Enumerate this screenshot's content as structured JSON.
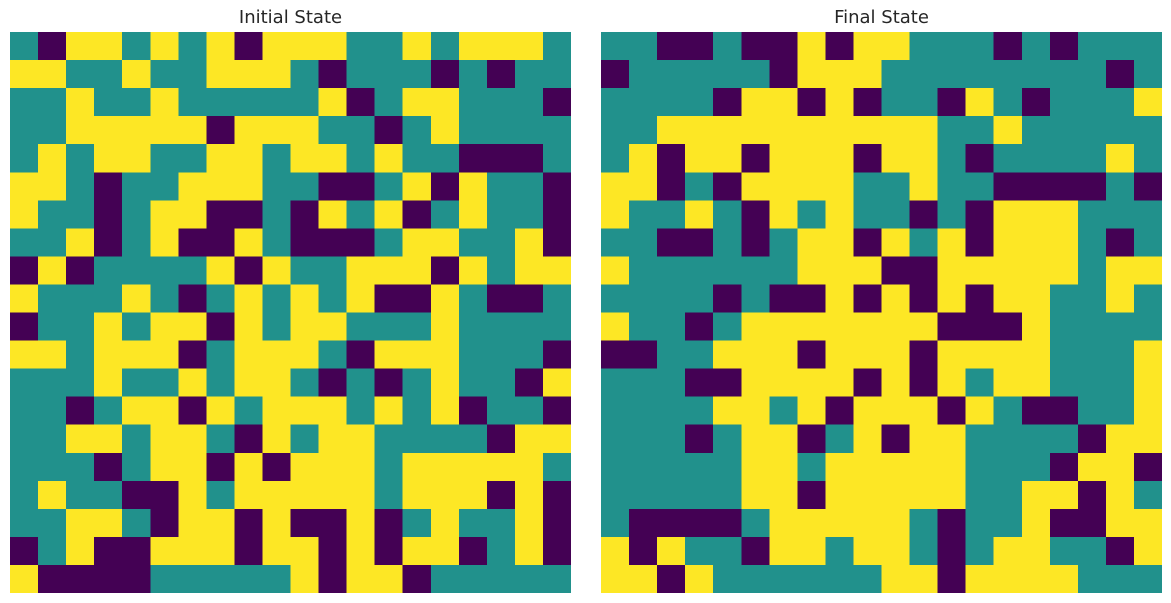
{
  "chart_data": [
    {
      "type": "heatmap",
      "title": "Initial State",
      "colors": {
        "0": "#440154",
        "1": "#21918c",
        "2": "#fde725"
      },
      "grid": [
        [
          1,
          0,
          2,
          2,
          1,
          2,
          1,
          2,
          0,
          2,
          2,
          2,
          1,
          1,
          2,
          1,
          2,
          2,
          2,
          1
        ],
        [
          2,
          2,
          1,
          1,
          2,
          1,
          1,
          2,
          2,
          2,
          1,
          0,
          1,
          1,
          1,
          0,
          1,
          0,
          1,
          1
        ],
        [
          1,
          1,
          2,
          1,
          1,
          2,
          1,
          1,
          1,
          1,
          1,
          2,
          0,
          1,
          2,
          2,
          1,
          1,
          1,
          0
        ],
        [
          1,
          1,
          2,
          2,
          2,
          2,
          2,
          0,
          2,
          2,
          2,
          1,
          1,
          0,
          1,
          2,
          1,
          1,
          1,
          1
        ],
        [
          1,
          2,
          1,
          2,
          2,
          1,
          1,
          2,
          2,
          1,
          2,
          2,
          1,
          2,
          1,
          1,
          0,
          0,
          0,
          1
        ],
        [
          2,
          2,
          1,
          0,
          1,
          1,
          2,
          2,
          2,
          1,
          1,
          0,
          0,
          1,
          2,
          0,
          2,
          1,
          1,
          0
        ],
        [
          2,
          1,
          1,
          0,
          1,
          2,
          2,
          0,
          0,
          1,
          0,
          2,
          1,
          2,
          0,
          1,
          2,
          1,
          1,
          0
        ],
        [
          1,
          1,
          2,
          0,
          1,
          2,
          0,
          0,
          2,
          1,
          0,
          0,
          0,
          1,
          2,
          2,
          1,
          1,
          2,
          0
        ],
        [
          0,
          2,
          0,
          1,
          1,
          1,
          1,
          2,
          0,
          2,
          1,
          1,
          2,
          2,
          2,
          0,
          2,
          1,
          2,
          2
        ],
        [
          2,
          1,
          1,
          1,
          2,
          1,
          0,
          1,
          2,
          1,
          2,
          1,
          2,
          0,
          0,
          2,
          1,
          0,
          0,
          1
        ],
        [
          0,
          1,
          1,
          2,
          1,
          2,
          2,
          0,
          2,
          1,
          2,
          2,
          1,
          1,
          1,
          2,
          1,
          1,
          1,
          1
        ],
        [
          2,
          2,
          1,
          2,
          2,
          2,
          0,
          1,
          2,
          2,
          2,
          1,
          0,
          2,
          2,
          2,
          1,
          1,
          1,
          0
        ],
        [
          1,
          1,
          1,
          2,
          1,
          1,
          2,
          1,
          2,
          2,
          1,
          0,
          1,
          0,
          1,
          2,
          1,
          1,
          0,
          2
        ],
        [
          1,
          1,
          0,
          1,
          2,
          2,
          0,
          2,
          1,
          2,
          2,
          2,
          1,
          2,
          1,
          2,
          0,
          1,
          1,
          0
        ],
        [
          1,
          1,
          2,
          2,
          1,
          2,
          2,
          1,
          0,
          2,
          1,
          2,
          2,
          1,
          1,
          1,
          1,
          0,
          2,
          2
        ],
        [
          1,
          1,
          1,
          0,
          1,
          2,
          2,
          0,
          2,
          0,
          2,
          2,
          2,
          1,
          2,
          2,
          2,
          2,
          2,
          1
        ],
        [
          1,
          2,
          1,
          1,
          0,
          0,
          2,
          1,
          2,
          2,
          2,
          2,
          2,
          1,
          2,
          2,
          2,
          0,
          2,
          0
        ],
        [
          1,
          1,
          2,
          2,
          1,
          0,
          2,
          2,
          0,
          2,
          0,
          0,
          2,
          0,
          1,
          2,
          1,
          1,
          2,
          0
        ],
        [
          0,
          1,
          2,
          0,
          0,
          2,
          2,
          2,
          0,
          2,
          2,
          0,
          2,
          0,
          2,
          2,
          0,
          1,
          2,
          0
        ],
        [
          2,
          0,
          0,
          0,
          0,
          1,
          1,
          1,
          1,
          1,
          2,
          0,
          2,
          2,
          0,
          1,
          1,
          1,
          1,
          1
        ]
      ]
    },
    {
      "type": "heatmap",
      "title": "Final State",
      "colors": {
        "0": "#440154",
        "1": "#21918c",
        "2": "#fde725"
      },
      "grid": [
        [
          1,
          1,
          0,
          0,
          1,
          0,
          0,
          2,
          0,
          2,
          2,
          1,
          1,
          1,
          0,
          1,
          0,
          1,
          1,
          1
        ],
        [
          0,
          1,
          1,
          1,
          1,
          1,
          0,
          2,
          2,
          2,
          1,
          1,
          1,
          1,
          1,
          1,
          1,
          1,
          0,
          1
        ],
        [
          1,
          1,
          1,
          1,
          0,
          2,
          2,
          0,
          2,
          0,
          1,
          1,
          0,
          2,
          1,
          0,
          1,
          1,
          1,
          2
        ],
        [
          1,
          1,
          2,
          2,
          2,
          2,
          2,
          2,
          2,
          2,
          2,
          2,
          1,
          1,
          2,
          1,
          1,
          1,
          1,
          1
        ],
        [
          1,
          2,
          0,
          2,
          2,
          0,
          2,
          2,
          2,
          0,
          2,
          2,
          1,
          0,
          1,
          1,
          1,
          1,
          2,
          1
        ],
        [
          2,
          2,
          0,
          1,
          0,
          2,
          2,
          2,
          2,
          1,
          1,
          2,
          1,
          1,
          0,
          0,
          0,
          0,
          1,
          0
        ],
        [
          2,
          1,
          1,
          2,
          1,
          0,
          2,
          1,
          2,
          1,
          1,
          0,
          1,
          0,
          2,
          2,
          2,
          1,
          1,
          1
        ],
        [
          1,
          1,
          0,
          0,
          1,
          0,
          1,
          2,
          2,
          0,
          2,
          1,
          2,
          0,
          2,
          2,
          2,
          1,
          0,
          1
        ],
        [
          2,
          1,
          1,
          1,
          1,
          1,
          1,
          2,
          2,
          2,
          0,
          0,
          2,
          2,
          2,
          2,
          2,
          1,
          2,
          2
        ],
        [
          1,
          1,
          1,
          1,
          0,
          1,
          0,
          0,
          2,
          0,
          2,
          0,
          2,
          0,
          2,
          2,
          1,
          1,
          2,
          1
        ],
        [
          2,
          1,
          1,
          0,
          1,
          2,
          2,
          2,
          2,
          2,
          2,
          2,
          0,
          0,
          0,
          2,
          1,
          1,
          1,
          1
        ],
        [
          0,
          0,
          1,
          1,
          2,
          2,
          2,
          0,
          2,
          2,
          2,
          0,
          2,
          2,
          2,
          2,
          1,
          1,
          1,
          2
        ],
        [
          1,
          1,
          1,
          0,
          0,
          2,
          2,
          2,
          2,
          0,
          2,
          0,
          2,
          1,
          2,
          2,
          1,
          1,
          1,
          2
        ],
        [
          1,
          1,
          1,
          1,
          2,
          2,
          1,
          2,
          0,
          2,
          2,
          2,
          0,
          2,
          1,
          0,
          0,
          1,
          1,
          2
        ],
        [
          1,
          1,
          1,
          0,
          1,
          2,
          2,
          0,
          1,
          2,
          0,
          2,
          2,
          1,
          1,
          1,
          1,
          0,
          2,
          2
        ],
        [
          1,
          1,
          1,
          1,
          1,
          2,
          2,
          1,
          2,
          2,
          2,
          2,
          2,
          1,
          1,
          1,
          0,
          2,
          2,
          0
        ],
        [
          1,
          1,
          1,
          1,
          1,
          2,
          2,
          0,
          2,
          2,
          2,
          2,
          2,
          1,
          1,
          2,
          2,
          0,
          2,
          1
        ],
        [
          1,
          0,
          0,
          0,
          0,
          1,
          2,
          2,
          2,
          2,
          2,
          1,
          0,
          1,
          1,
          2,
          0,
          0,
          2,
          2
        ],
        [
          2,
          0,
          2,
          1,
          1,
          0,
          2,
          2,
          1,
          2,
          2,
          1,
          0,
          1,
          2,
          2,
          1,
          1,
          0,
          2
        ],
        [
          2,
          2,
          0,
          2,
          1,
          1,
          1,
          1,
          1,
          1,
          2,
          2,
          0,
          2,
          2,
          2,
          2,
          1,
          1,
          1
        ]
      ]
    }
  ]
}
